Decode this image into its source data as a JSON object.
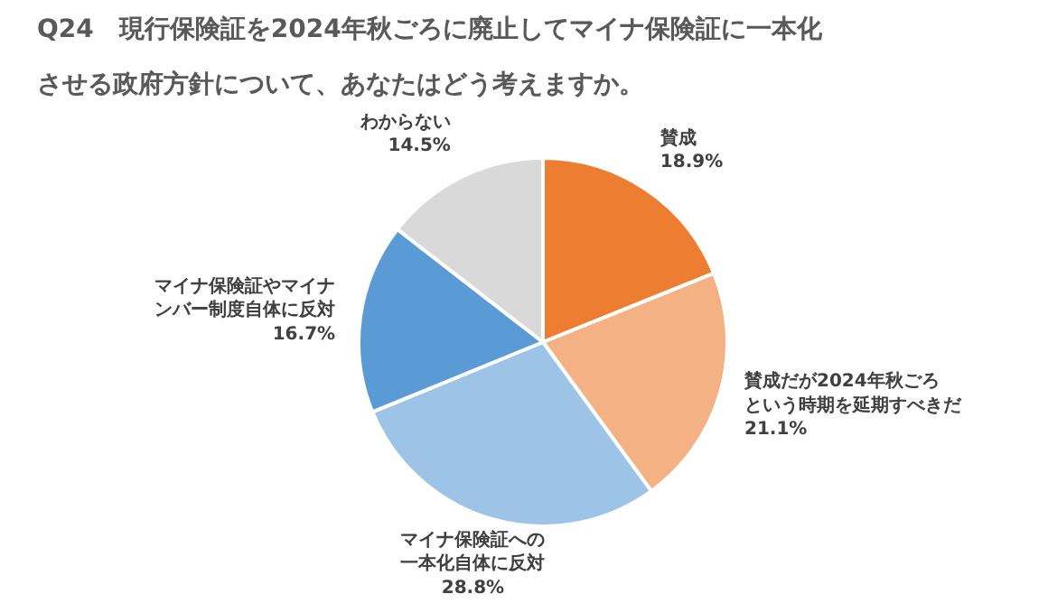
{
  "chart_data": {
    "type": "pie",
    "title": "Q24　現行保険証を2024年秋ごろに廃止してマイナ保険証に一本化させる政府方針について、あなたはどう考えますか。",
    "categories": [
      "賛成",
      "賛成だが2024年秋ごろという時期を延期すべきだ",
      "マイナ保険証への一本化自体に反対",
      "マイナ保険証やマイナンバー制度自体に反対",
      "わからない"
    ],
    "values": [
      18.9,
      21.1,
      28.8,
      16.7,
      14.5
    ],
    "colors": [
      "#ed7d31",
      "#f4b183",
      "#9dc3e6",
      "#5b9bd5",
      "#d9d9d9"
    ],
    "value_labels": [
      "18.9%",
      "21.1%",
      "28.8%",
      "16.7%",
      "14.5%"
    ]
  }
}
